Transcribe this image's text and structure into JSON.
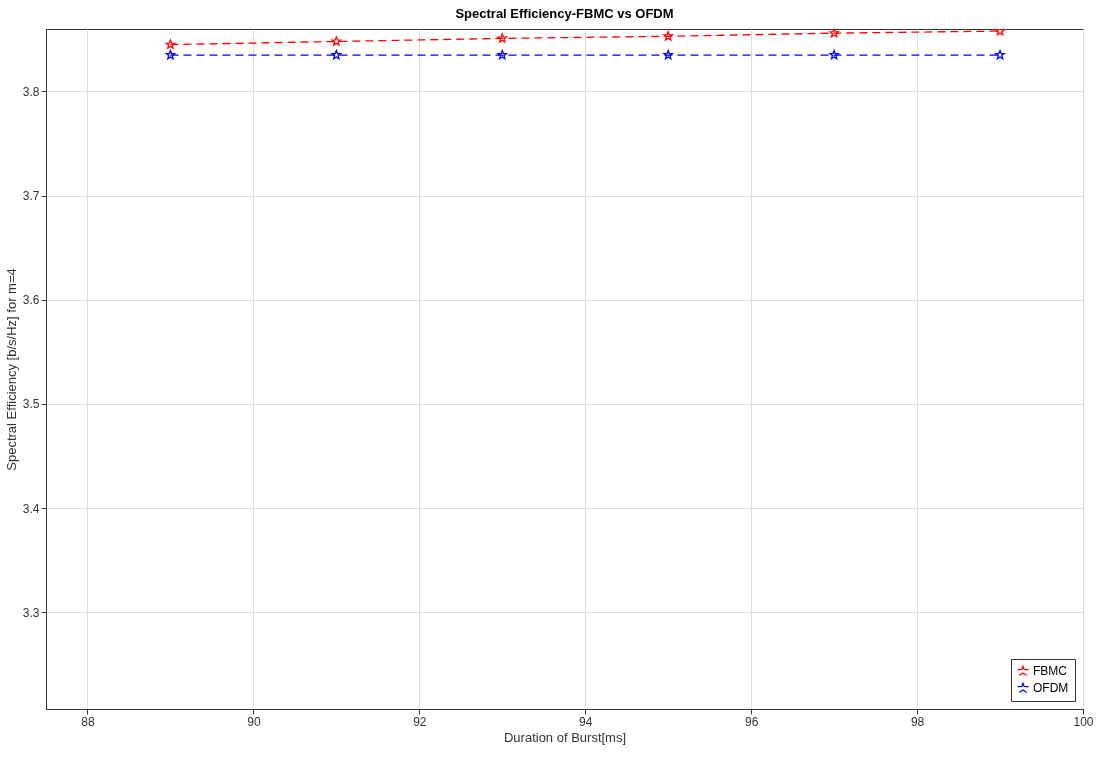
{
  "chart_data": {
    "type": "line",
    "title": "Spectral Efficiency-FBMC vs OFDM",
    "xlabel": "Duration of Burst[ms]",
    "ylabel": "Spectral Efficiency [b/s/Hz] for m=4",
    "x": [
      89,
      91,
      93,
      95,
      97,
      99
    ],
    "series": [
      {
        "name": "FBMC",
        "color": "#ff0000",
        "values": [
          3.845,
          3.848,
          3.851,
          3.853,
          3.856,
          3.858
        ]
      },
      {
        "name": "OFDM",
        "color": "#0000ff",
        "values": [
          3.835,
          3.835,
          3.835,
          3.835,
          3.835,
          3.835
        ]
      }
    ],
    "xlim": [
      87.5,
      100
    ],
    "xticks": [
      88,
      90,
      92,
      94,
      96,
      98,
      100
    ],
    "ylim": [
      3.207,
      3.86
    ],
    "yticks": [
      3.3,
      3.4,
      3.5,
      3.6,
      3.7,
      3.8
    ],
    "grid": true,
    "legend": "bottom right",
    "marker": "star",
    "line_style": "dashed"
  }
}
